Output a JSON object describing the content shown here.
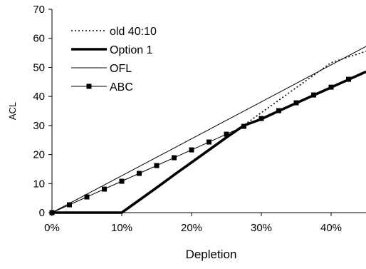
{
  "chart_data": {
    "type": "line",
    "title": "",
    "xlabel": "Depletion",
    "ylabel": "ACL",
    "xlim": [
      0,
      45
    ],
    "ylim": [
      0,
      70
    ],
    "x_ticks": [
      0,
      10,
      20,
      30,
      40
    ],
    "x_tick_labels": [
      "0%",
      "10%",
      "20%",
      "30%",
      "40%"
    ],
    "y_ticks": [
      0,
      10,
      20,
      30,
      40,
      50,
      60,
      70
    ],
    "y_tick_labels": [
      "0",
      "10",
      "20",
      "30",
      "40",
      "50",
      "60",
      "70"
    ],
    "grid": false,
    "legend_position": "top-left",
    "series": [
      {
        "name": "old 40:10",
        "style": "dotted",
        "color": "#000000",
        "x": [
          0,
          10,
          12.5,
          15,
          17.5,
          20,
          22.5,
          25,
          27.5,
          30,
          32.5,
          35,
          37.5,
          40,
          42.5,
          45
        ],
        "y": [
          0,
          0,
          4.3,
          8.6,
          12.9,
          17.2,
          21.5,
          25.8,
          30.1,
          34.4,
          38.7,
          43.0,
          47.3,
          51.6,
          53.6,
          55.5
        ]
      },
      {
        "name": "Option 1",
        "style": "thick",
        "color": "#000000",
        "x": [
          0,
          10,
          12.5,
          15,
          17.5,
          20,
          22.5,
          25,
          27.5,
          30,
          32.5,
          35,
          37.5,
          40,
          42.5,
          45
        ],
        "y": [
          0,
          0,
          4.3,
          8.6,
          13.0,
          17.3,
          21.6,
          25.9,
          30.0,
          32.2,
          35.0,
          37.7,
          40.4,
          43.1,
          45.8,
          48.5
        ]
      },
      {
        "name": "OFL",
        "style": "thin",
        "color": "#000000",
        "x": [
          0,
          45
        ],
        "y": [
          0,
          57.2
        ]
      },
      {
        "name": "ABC",
        "style": "marker",
        "color": "#000000",
        "x": [
          0,
          2.5,
          5,
          7.5,
          10,
          12.5,
          15,
          17.5,
          20,
          22.5,
          25,
          27.5,
          30,
          32.5,
          35,
          37.5,
          40,
          42.5,
          45
        ],
        "y": [
          0,
          2.7,
          5.4,
          8.1,
          10.8,
          13.5,
          16.2,
          18.9,
          21.6,
          24.3,
          27.0,
          29.7,
          32.4,
          35.1,
          37.8,
          40.5,
          43.2,
          45.9,
          48.6
        ]
      }
    ]
  }
}
